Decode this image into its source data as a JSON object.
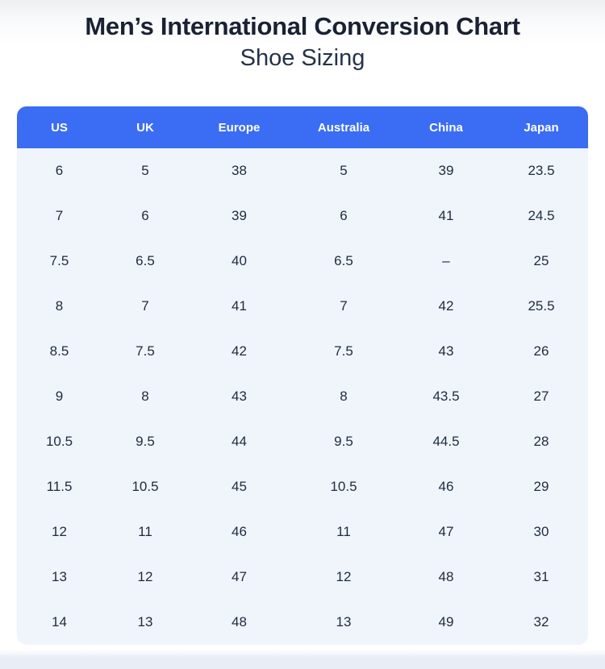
{
  "page": {
    "title": "Men’s International Conversion Chart",
    "subtitle": "Shoe Sizing"
  },
  "chart_data": {
    "type": "table",
    "title": "Men’s International Conversion Chart",
    "subtitle": "Shoe Sizing",
    "columns": [
      "US",
      "UK",
      "Europe",
      "Australia",
      "China",
      "Japan"
    ],
    "rows": [
      [
        "6",
        "5",
        "38",
        "5",
        "39",
        "23.5"
      ],
      [
        "7",
        "6",
        "39",
        "6",
        "41",
        "24.5"
      ],
      [
        "7.5",
        "6.5",
        "40",
        "6.5",
        "–",
        "25"
      ],
      [
        "8",
        "7",
        "41",
        "7",
        "42",
        "25.5"
      ],
      [
        "8.5",
        "7.5",
        "42",
        "7.5",
        "43",
        "26"
      ],
      [
        "9",
        "8",
        "43",
        "8",
        "43.5",
        "27"
      ],
      [
        "10.5",
        "9.5",
        "44",
        "9.5",
        "44.5",
        "28"
      ],
      [
        "11.5",
        "10.5",
        "45",
        "10.5",
        "46",
        "29"
      ],
      [
        "12",
        "11",
        "46",
        "11",
        "47",
        "30"
      ],
      [
        "13",
        "12",
        "47",
        "12",
        "48",
        "31"
      ],
      [
        "14",
        "13",
        "48",
        "13",
        "49",
        "32"
      ]
    ],
    "legend_position": "none",
    "grid": false
  },
  "colors": {
    "header_bg": "#3b6cf4",
    "header_text": "#ffffff",
    "body_bg": "#f0f5fc",
    "cell_text": "#1e2b3c",
    "title_text": "#1a2133",
    "subtitle_text": "#24334a"
  }
}
